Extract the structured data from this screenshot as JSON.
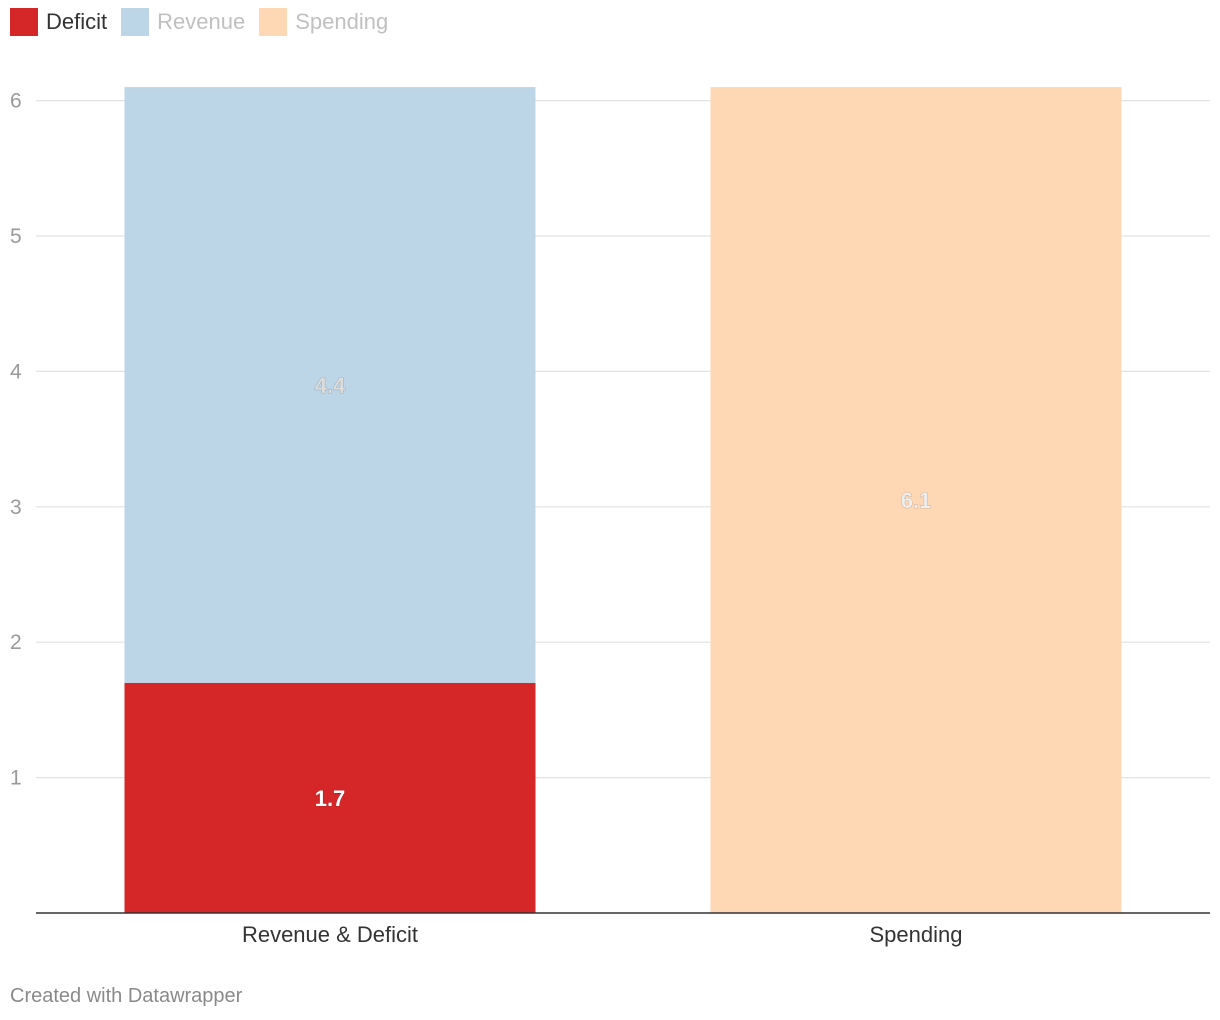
{
  "legend": {
    "items": [
      {
        "label": "Deficit",
        "color": "#d62728",
        "text_color": "#333333",
        "active": true
      },
      {
        "label": "Revenue",
        "color": "#bcd6e8",
        "text_color": "#c0c0c0",
        "active": false
      },
      {
        "label": "Spending",
        "color": "#fed8b5",
        "text_color": "#c0c0c0",
        "active": false
      }
    ]
  },
  "chart_data": {
    "type": "bar",
    "stacked": true,
    "categories": [
      "Revenue & Deficit",
      "Spending"
    ],
    "series": [
      {
        "name": "Deficit",
        "values": [
          1.7,
          0
        ],
        "color": "#d62728",
        "label_color": "#ffffff"
      },
      {
        "name": "Revenue",
        "values": [
          4.4,
          0
        ],
        "color": "#bcd6e8",
        "label_color": "#dddddd"
      },
      {
        "name": "Spending",
        "values": [
          0,
          6.1
        ],
        "color": "#fed8b5",
        "label_color": "#eeeeee"
      }
    ],
    "data_labels": [
      "1.7",
      "4.4",
      "6.1"
    ],
    "y_ticks": [
      1,
      2,
      3,
      4,
      5,
      6
    ],
    "ylim": [
      0,
      6.1
    ],
    "grid": true,
    "legend_position": "top-left"
  },
  "footer": {
    "credit": "Created with Datawrapper"
  }
}
